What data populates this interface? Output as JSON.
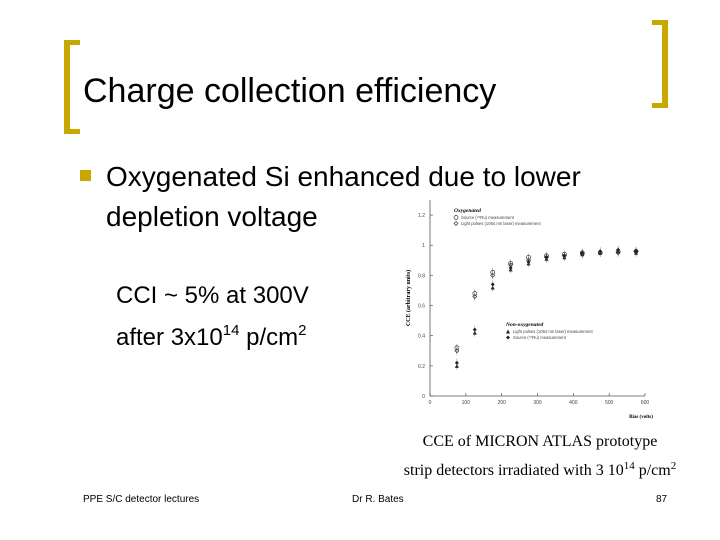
{
  "slide": {
    "title": "Charge collection efficiency",
    "bullet": "Oxygenated Si enhanced due to lower depletion voltage",
    "note_line1": "CCI ~ 5% at 300V",
    "note_line2_pre": "after 3x10",
    "note_line2_sup": "14",
    "note_line2_mid": " p/cm",
    "note_line2_sup2": "2",
    "caption_line1": "CCE of MICRON ATLAS prototype",
    "caption_line2_pre": "strip detectors irradiated with 3 10",
    "caption_line2_sup": "14",
    "caption_line2_mid": " p/cm",
    "caption_line2_sup2": "2",
    "footer_left": "PPE S/C detector lectures",
    "footer_center": "Dr R. Bates",
    "footer_right": "87",
    "accent_color": "#c8a800"
  },
  "chart_data": {
    "type": "scatter",
    "xlabel": "Bias (volts)",
    "ylabel": "CCE (arbitrary units)",
    "xlim": [
      0,
      600
    ],
    "ylim": [
      0,
      1.3
    ],
    "xticks": [
      0,
      100,
      200,
      300,
      400,
      500,
      600
    ],
    "yticks": [
      0,
      0.2,
      0.4,
      0.6,
      0.8,
      1,
      1.2
    ],
    "xtick_labels": [
      "0",
      "100",
      "200",
      "300",
      "400",
      "500",
      "600"
    ],
    "ytick_labels": [
      "0",
      "0.2",
      "0.4",
      "0.6",
      "0.8",
      "1",
      "1.2"
    ],
    "group_labels": {
      "oxygenated": "Oxygenated",
      "non_oxygenated": "Non-oxygenated"
    },
    "series": [
      {
        "name": "Source (⁹⁰Ru) measurement",
        "group": "oxygenated",
        "marker": "open-circle",
        "x": [
          75,
          125,
          175,
          225,
          275,
          325,
          375,
          425,
          475,
          525,
          575
        ],
        "y": [
          0.32,
          0.68,
          0.82,
          0.88,
          0.92,
          0.93,
          0.94,
          0.95,
          0.95,
          0.96,
          0.96
        ]
      },
      {
        "name": "Light pulses (1064 nm laser) measurement",
        "group": "oxygenated",
        "marker": "open-diamond",
        "x": [
          75,
          125,
          175,
          225,
          275,
          325,
          375,
          425,
          475,
          525,
          575
        ],
        "y": [
          0.3,
          0.66,
          0.8,
          0.87,
          0.9,
          0.92,
          0.93,
          0.94,
          0.95,
          0.95,
          0.96
        ]
      },
      {
        "name": "Light pulses (1064 nm laser) measurement",
        "group": "non_oxygenated",
        "marker": "filled-triangle",
        "x": [
          75,
          125,
          175,
          225,
          275,
          325,
          375,
          425,
          475,
          525,
          575
        ],
        "y": [
          0.2,
          0.42,
          0.72,
          0.84,
          0.88,
          0.91,
          0.92,
          0.94,
          0.95,
          0.96,
          0.95
        ]
      },
      {
        "name": "Source (⁹⁰Ru) measurement",
        "group": "non_oxygenated",
        "marker": "filled-diamond",
        "x": [
          75,
          125,
          175,
          225,
          275,
          325,
          375,
          425,
          475,
          525,
          575
        ],
        "y": [
          0.22,
          0.44,
          0.74,
          0.85,
          0.89,
          0.92,
          0.93,
          0.95,
          0.96,
          0.97,
          0.96
        ]
      }
    ]
  }
}
